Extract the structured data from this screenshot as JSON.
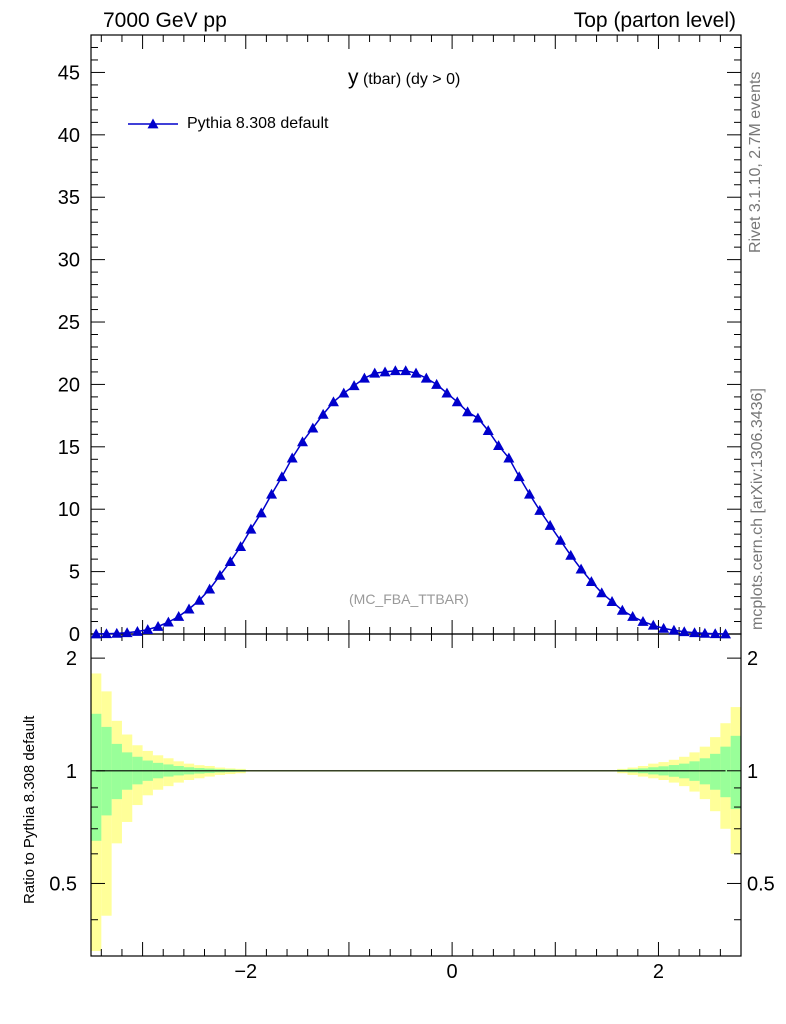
{
  "header": {
    "left": "7000 GeV pp",
    "right": "Top (parton level)"
  },
  "side_labels": {
    "rivet": "Rivet 3.1.10,  2.7M events",
    "mcplots": "mcplots.cern.ch [arXiv:1306.3436]"
  },
  "chart_data": [
    {
      "type": "line",
      "panel": "main",
      "title_main": "y",
      "title_sub": "(tbar) (dy > 0)",
      "watermark": "(MC_FBA_TTBAR)",
      "xlim": [
        -3.5,
        2.8
      ],
      "ylim": [
        0,
        48
      ],
      "yticks": [
        0,
        5,
        10,
        15,
        20,
        25,
        30,
        35,
        40,
        45
      ],
      "legend": "top-left",
      "series": [
        {
          "name": "Pythia 8.308 default",
          "color": "#0000cc",
          "marker": "triangle",
          "x": [
            -3.45,
            -3.35,
            -3.25,
            -3.15,
            -3.05,
            -2.95,
            -2.85,
            -2.75,
            -2.65,
            -2.55,
            -2.45,
            -2.35,
            -2.25,
            -2.15,
            -2.05,
            -1.95,
            -1.85,
            -1.75,
            -1.65,
            -1.55,
            -1.45,
            -1.35,
            -1.25,
            -1.15,
            -1.05,
            -0.95,
            -0.85,
            -0.75,
            -0.65,
            -0.55,
            -0.45,
            -0.35,
            -0.25,
            -0.15,
            -0.05,
            0.05,
            0.15,
            0.25,
            0.35,
            0.45,
            0.55,
            0.65,
            0.75,
            0.85,
            0.95,
            1.05,
            1.15,
            1.25,
            1.35,
            1.45,
            1.55,
            1.65,
            1.75,
            1.85,
            1.95,
            2.05,
            2.15,
            2.25,
            2.35,
            2.45,
            2.55,
            2.65
          ],
          "y": [
            0.0,
            0.02,
            0.05,
            0.1,
            0.2,
            0.35,
            0.6,
            0.95,
            1.4,
            2.0,
            2.7,
            3.6,
            4.7,
            5.8,
            7.0,
            8.4,
            9.7,
            11.2,
            12.6,
            14.1,
            15.4,
            16.5,
            17.6,
            18.6,
            19.3,
            19.9,
            20.5,
            20.9,
            21.0,
            21.1,
            21.1,
            20.9,
            20.5,
            20.0,
            19.3,
            18.6,
            17.8,
            17.3,
            16.3,
            15.1,
            14.1,
            12.6,
            11.2,
            9.9,
            8.7,
            7.5,
            6.3,
            5.2,
            4.2,
            3.3,
            2.6,
            1.9,
            1.4,
            1.0,
            0.7,
            0.45,
            0.3,
            0.18,
            0.1,
            0.05,
            0.02,
            0.0
          ]
        }
      ]
    },
    {
      "type": "area",
      "panel": "ratio",
      "ylabel": "Ratio to Pythia 8.308 default",
      "xlim": [
        -3.5,
        2.8
      ],
      "ylim": [
        0.32,
        2.32
      ],
      "ylog": true,
      "yticks": [
        0.5,
        1,
        2
      ],
      "xticks": [
        -2,
        0,
        2
      ],
      "reference_line": 1,
      "bands": [
        {
          "name": "outer",
          "color": "#ffff99",
          "x_edges": [
            -3.5,
            -3.4,
            -3.3,
            -3.2,
            -3.1,
            -3.0,
            -2.9,
            -2.8,
            -2.7,
            -2.6,
            -2.5,
            -2.4,
            -2.3,
            -2.2,
            -2.1,
            -2.0,
            1.6,
            1.7,
            1.8,
            1.9,
            2.0,
            2.1,
            2.2,
            2.3,
            2.4,
            2.5,
            2.6,
            2.7,
            2.8
          ],
          "up": [
            1.82,
            1.63,
            1.36,
            1.25,
            1.17,
            1.13,
            1.1,
            1.08,
            1.06,
            1.045,
            1.035,
            1.03,
            1.02,
            1.015,
            1.012,
            1.005,
            1.012,
            1.02,
            1.03,
            1.045,
            1.055,
            1.07,
            1.09,
            1.12,
            1.16,
            1.23,
            1.34,
            1.48
          ],
          "dn": [
            0.33,
            0.41,
            0.64,
            0.73,
            0.81,
            0.86,
            0.89,
            0.91,
            0.93,
            0.945,
            0.955,
            0.965,
            0.975,
            0.98,
            0.985,
            0.995,
            0.985,
            0.975,
            0.965,
            0.955,
            0.945,
            0.93,
            0.91,
            0.88,
            0.84,
            0.78,
            0.7,
            0.6
          ]
        },
        {
          "name": "inner",
          "color": "#99ff99",
          "x_edges": [
            -3.5,
            -3.4,
            -3.3,
            -3.2,
            -3.1,
            -3.0,
            -2.9,
            -2.8,
            -2.7,
            -2.6,
            -2.5,
            -2.4,
            -2.3,
            -2.2,
            -2.1,
            -2.0,
            1.6,
            1.7,
            1.8,
            1.9,
            2.0,
            2.1,
            2.2,
            2.3,
            2.4,
            2.5,
            2.6,
            2.7,
            2.8
          ],
          "up": [
            1.42,
            1.31,
            1.18,
            1.12,
            1.09,
            1.065,
            1.05,
            1.04,
            1.03,
            1.022,
            1.017,
            1.014,
            1.01,
            1.008,
            1.006,
            1.003,
            1.006,
            1.01,
            1.015,
            1.022,
            1.028,
            1.036,
            1.045,
            1.06,
            1.08,
            1.11,
            1.16,
            1.24
          ],
          "dn": [
            0.65,
            0.76,
            0.84,
            0.89,
            0.92,
            0.94,
            0.955,
            0.965,
            0.972,
            0.978,
            0.983,
            0.986,
            0.99,
            0.992,
            0.994,
            0.997,
            0.994,
            0.99,
            0.985,
            0.978,
            0.972,
            0.964,
            0.955,
            0.94,
            0.92,
            0.89,
            0.85,
            0.79
          ]
        }
      ]
    }
  ]
}
